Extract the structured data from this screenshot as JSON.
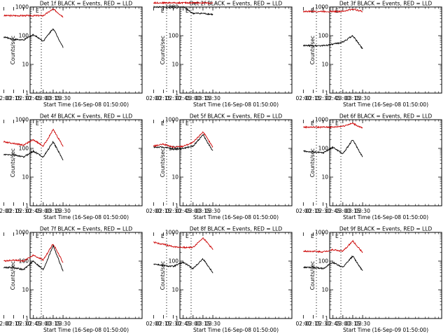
{
  "chart_data": [
    {
      "type": "line",
      "title": "Det 1f BLACK = Events, RED = LLD",
      "xlabel": "Start Time (16-Sep-08 01:50:00)",
      "ylabel": "Counts/sec",
      "ylim": [
        1,
        1000
      ],
      "yscale": "log",
      "x": [
        "02:00",
        "02:15",
        "02:30",
        "02:45",
        "03:00",
        "03:15",
        "03:30"
      ],
      "markers": [
        "E",
        "E"
      ],
      "series": [
        {
          "name": "RED",
          "color": "#cc0000",
          "values": [
            500,
            500,
            500,
            500,
            500,
            850,
            460
          ]
        },
        {
          "name": "BLACK",
          "color": "#000000",
          "values": [
            90,
            75,
            70,
            110,
            65,
            180,
            40
          ]
        }
      ]
    },
    {
      "type": "line",
      "title": "Det 2f BLACK = Events, RED = LLD",
      "xlabel": "Start Time (16-Sep-08 01:50:00)",
      "ylabel": "Counts/sec",
      "ylim": [
        1,
        1000
      ],
      "yscale": "log",
      "x": [
        "02:00",
        "02:15",
        "02:30",
        "02:45",
        "03:00",
        "03:15",
        "03:30"
      ],
      "markers": [
        "E",
        "E"
      ],
      "series": [
        {
          "name": "RED",
          "color": "#cc0000",
          "values": [
            1400,
            1400,
            1400,
            1400,
            1400,
            1400,
            1350
          ]
        },
        {
          "name": "BLACK",
          "color": "#000000",
          "values": [
            1000,
            1000,
            1000,
            1000,
            600,
            600,
            550
          ]
        }
      ]
    },
    {
      "type": "line",
      "title": "Det 3f BLACK = Events, RED = LLD",
      "xlabel": "Start Time (16-Sep-08 01:50:00)",
      "ylabel": "Counts/sec",
      "ylim": [
        1,
        1000
      ],
      "yscale": "log",
      "x": [
        "02:00",
        "02:15",
        "02:30",
        "02:45",
        "03:00",
        "03:15",
        "03:30"
      ],
      "markers": [
        "E",
        "E"
      ],
      "series": [
        {
          "name": "RED",
          "color": "#cc0000",
          "values": [
            700,
            700,
            700,
            700,
            700,
            850,
            700
          ]
        },
        {
          "name": "BLACK",
          "color": "#000000",
          "values": [
            45,
            45,
            45,
            50,
            60,
            100,
            35
          ]
        }
      ]
    },
    {
      "type": "line",
      "title": "Det 4f BLACK = Events, RED = LLD",
      "xlabel": "Start Time (16-Sep-08 01:50:00)",
      "ylabel": "Counts/sec",
      "ylim": [
        1,
        1000
      ],
      "yscale": "log",
      "x": [
        "02:00",
        "02:15",
        "02:30",
        "02:45",
        "03:00",
        "03:15",
        "03:30"
      ],
      "markers": [
        "E",
        "E"
      ],
      "series": [
        {
          "name": "RED",
          "color": "#cc0000",
          "values": [
            170,
            150,
            130,
            200,
            120,
            450,
            120
          ]
        },
        {
          "name": "BLACK",
          "color": "#000000",
          "values": [
            60,
            60,
            50,
            80,
            50,
            170,
            40
          ]
        }
      ]
    },
    {
      "type": "line",
      "title": "Det 5f BLACK = Events, RED = LLD",
      "xlabel": "Start Time (16-Sep-08 01:50:00)",
      "ylabel": "Counts/sec",
      "ylim": [
        1,
        1000
      ],
      "yscale": "log",
      "x": [
        "02:00",
        "02:15",
        "02:30",
        "02:45",
        "03:00",
        "03:15",
        "03:30"
      ],
      "markers": [
        "E",
        "E"
      ],
      "series": [
        {
          "name": "RED",
          "color": "#cc0000",
          "values": [
            120,
            140,
            110,
            120,
            160,
            380,
            110
          ]
        },
        {
          "name": "BLACK",
          "color": "#000000",
          "values": [
            110,
            110,
            95,
            100,
            120,
            300,
            80
          ]
        }
      ]
    },
    {
      "type": "line",
      "title": "Det 6f BLACK = Events, RED = LLD",
      "xlabel": "Start Time (16-Sep-08 01:50:00)",
      "ylabel": "Counts/sec",
      "ylim": [
        1,
        1000
      ],
      "yscale": "log",
      "x": [
        "02:00",
        "02:15",
        "02:30",
        "02:45",
        "03:00",
        "03:15",
        "03:30"
      ],
      "markers": [
        "E",
        "E"
      ],
      "series": [
        {
          "name": "RED",
          "color": "#cc0000",
          "values": [
            550,
            550,
            550,
            550,
            600,
            750,
            500
          ]
        },
        {
          "name": "BLACK",
          "color": "#000000",
          "values": [
            80,
            75,
            70,
            110,
            65,
            200,
            50
          ]
        }
      ]
    },
    {
      "type": "line",
      "title": "Det 7f BLACK = Events, RED = LLD",
      "xlabel": "Start Time (16-Sep-08 01:50:00)",
      "ylabel": "Counts/sec",
      "ylim": [
        1,
        1000
      ],
      "yscale": "log",
      "x": [
        "02:00",
        "02:15",
        "02:30",
        "02:45",
        "03:00",
        "03:15",
        "03:30"
      ],
      "markers": [
        "E",
        "E"
      ],
      "series": [
        {
          "name": "RED",
          "color": "#cc0000",
          "values": [
            100,
            110,
            100,
            160,
            110,
            400,
            90
          ]
        },
        {
          "name": "BLACK",
          "color": "#000000",
          "values": [
            60,
            60,
            50,
            100,
            50,
            350,
            45
          ]
        }
      ]
    },
    {
      "type": "line",
      "title": "Det 8f BLACK = Events, RED = LLD",
      "xlabel": "Start Time (16-Sep-08 01:50:00)",
      "ylabel": "Counts/sec",
      "ylim": [
        1,
        1000
      ],
      "yscale": "log",
      "x": [
        "02:00",
        "02:15",
        "02:30",
        "02:45",
        "03:00",
        "03:15",
        "03:30"
      ],
      "markers": [
        "E",
        "E"
      ],
      "series": [
        {
          "name": "RED",
          "color": "#cc0000",
          "values": [
            450,
            380,
            320,
            300,
            300,
            650,
            260
          ]
        },
        {
          "name": "BLACK",
          "color": "#000000",
          "values": [
            80,
            70,
            65,
            90,
            55,
            120,
            40
          ]
        }
      ]
    },
    {
      "type": "line",
      "title": "Det 9f BLACK = Events, RED = LLD",
      "xlabel": "Start Time (16-Sep-09 01:50:00)",
      "ylabel": "Counts/sec",
      "ylim": [
        1,
        1000
      ],
      "yscale": "log",
      "x": [
        "02:00",
        "02:15",
        "02:30",
        "02:45",
        "03:00",
        "03:15",
        "03:30"
      ],
      "markers": [
        "E",
        "E"
      ],
      "series": [
        {
          "name": "RED",
          "color": "#cc0000",
          "values": [
            220,
            220,
            210,
            250,
            220,
            500,
            200
          ]
        },
        {
          "name": "BLACK",
          "color": "#000000",
          "values": [
            60,
            60,
            55,
            90,
            60,
            150,
            45
          ]
        }
      ]
    }
  ]
}
